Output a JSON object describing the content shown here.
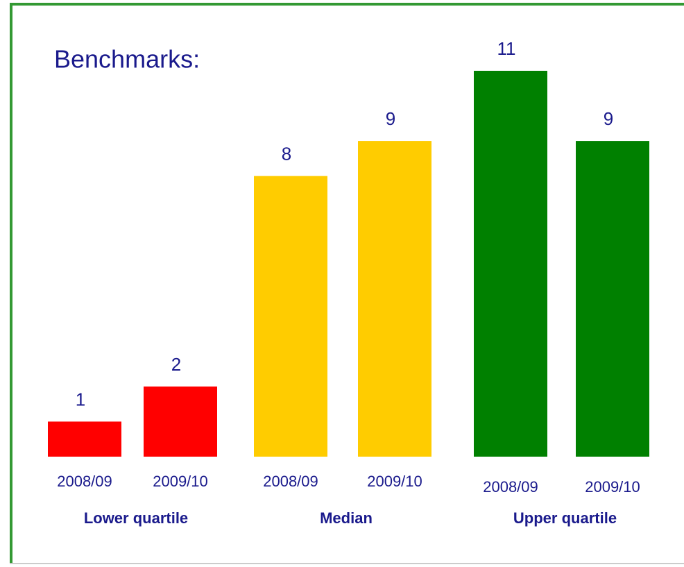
{
  "chart_data": {
    "type": "bar",
    "title": "Benchmarks:",
    "ylim": [
      0,
      11
    ],
    "groups": [
      {
        "name": "Lower quartile",
        "color": "#ff0000",
        "categories": [
          "2008/09",
          "2009/10"
        ],
        "values": [
          1,
          2
        ]
      },
      {
        "name": "Median",
        "color": "#ffcc00",
        "categories": [
          "2008/09",
          "2009/10"
        ],
        "values": [
          8,
          9
        ]
      },
      {
        "name": "Upper quartile",
        "color": "#008000",
        "categories": [
          "2008/09",
          "2009/10"
        ],
        "values": [
          11,
          9
        ]
      }
    ]
  }
}
